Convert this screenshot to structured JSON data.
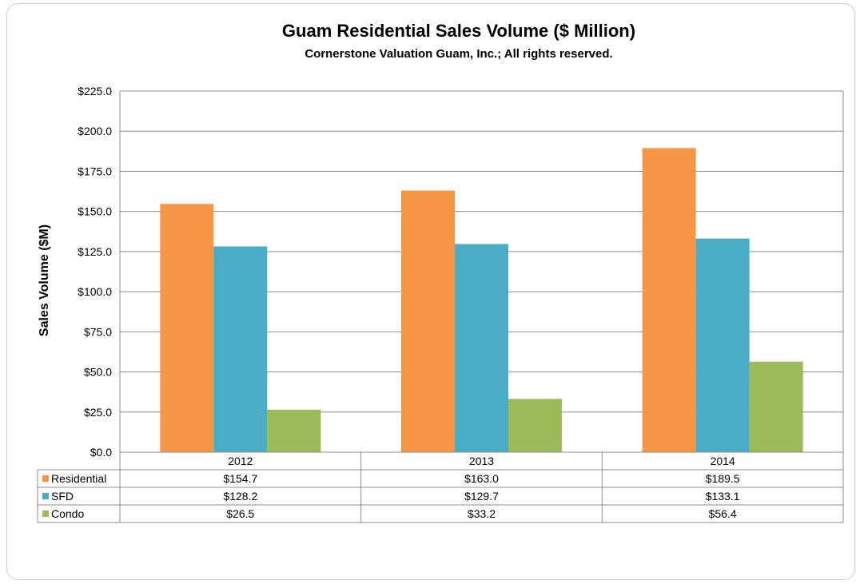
{
  "chart_data": {
    "type": "bar",
    "title": "Guam Residential Sales Volume ($ Million)",
    "subtitle": "Cornerstone Valuation Guam, Inc.; All rights reserved.",
    "xlabel": "",
    "ylabel": "Sales Volume ($M)",
    "ylim": [
      0,
      225
    ],
    "ytick_step": 25,
    "ytick_labels": [
      "$0.0",
      "$25.0",
      "$50.0",
      "$75.0",
      "$100.0",
      "$125.0",
      "$150.0",
      "$175.0",
      "$200.0",
      "$225.0"
    ],
    "grid": true,
    "legend": "data-table",
    "categories": [
      "2012",
      "2013",
      "2014"
    ],
    "series": [
      {
        "name": "Residential",
        "color": "#F79646",
        "values": [
          154.7,
          163.0,
          189.5
        ],
        "labels": [
          "$154.7",
          "$163.0",
          "$189.5"
        ]
      },
      {
        "name": "SFD",
        "color": "#4BACC6",
        "values": [
          128.2,
          129.7,
          133.1
        ],
        "labels": [
          "$128.2",
          "$129.7",
          "$133.1"
        ]
      },
      {
        "name": "Condo",
        "color": "#9BBB59",
        "values": [
          26.5,
          33.2,
          56.4
        ],
        "labels": [
          "$26.5",
          "$33.2",
          "$56.4"
        ]
      }
    ]
  }
}
